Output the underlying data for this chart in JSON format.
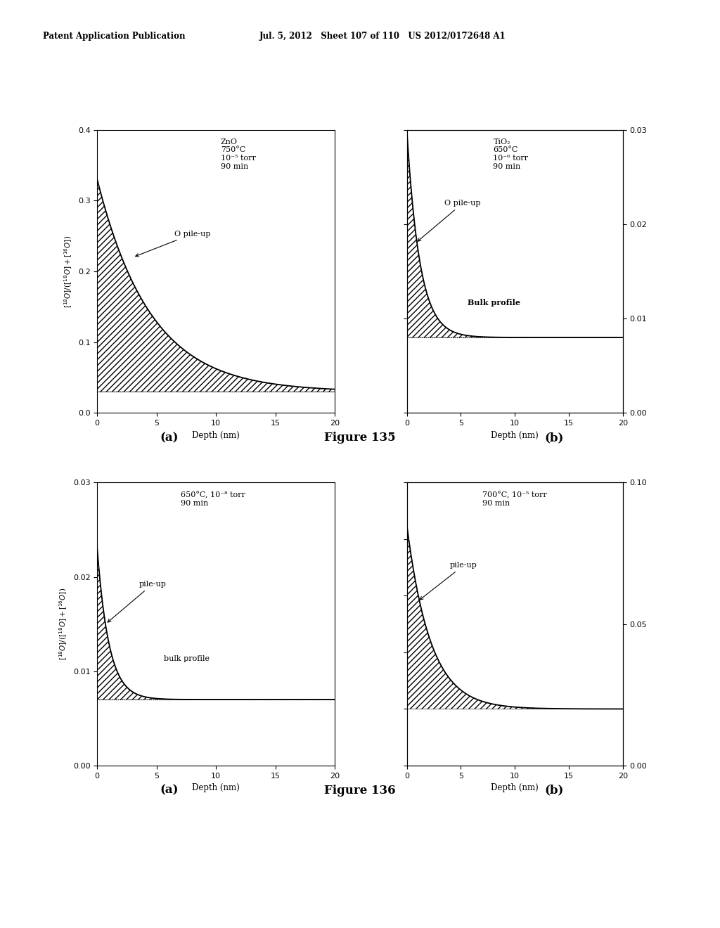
{
  "header_left": "Patent Application Publication",
  "header_right": "Jul. 5, 2012   Sheet 107 of 110   US 2012/0172648 A1",
  "fig135a_annotation": "O pile-up",
  "fig135b_annotation": "O pile-up",
  "fig135b_bulk": "Bulk profile",
  "fig136a_annotation": "pile-up",
  "fig136a_bulk": "bulk profile",
  "fig136b_annotation": "pile-up",
  "figure135_label": "Figure 135",
  "figure136_label": "Figure 136",
  "fig135a_text": "ZnO\n750°C\n10⁻⁵ torr\n90 min",
  "fig135b_text": "TiO₂\n650°C\n10⁻⁶ torr\n90 min",
  "fig136a_text": "650°C, 10⁻⁸ torr\n90 min",
  "fig136b_text": "700°C, 10⁻⁵ torr\n90 min",
  "subplot_left_label": "(a)",
  "subplot_right_label": "(b)"
}
